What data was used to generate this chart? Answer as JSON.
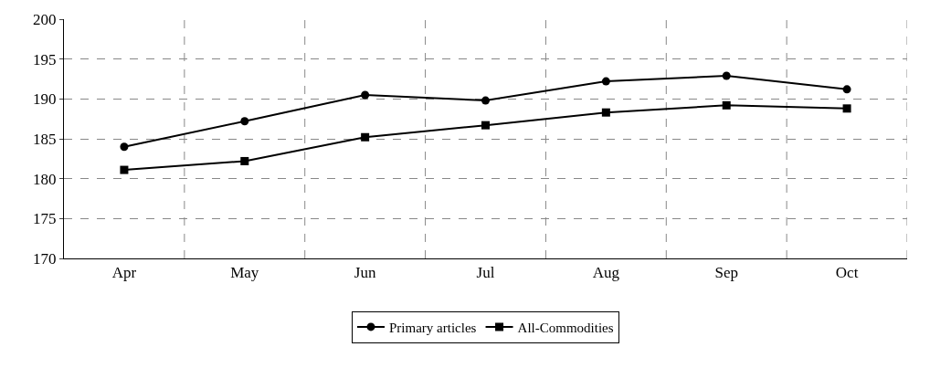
{
  "chart_data": {
    "type": "line",
    "categories": [
      "Apr",
      "May",
      "Jun",
      "Jul",
      "Aug",
      "Sep",
      "Oct"
    ],
    "series": [
      {
        "name": "Primary articles",
        "color": "#000000",
        "marker": "circle",
        "values": [
          184.0,
          187.2,
          190.5,
          189.8,
          192.2,
          192.9,
          191.2
        ]
      },
      {
        "name": "All-Commodities",
        "color": "#000000",
        "marker": "square",
        "values": [
          181.1,
          182.2,
          185.2,
          186.7,
          188.3,
          189.2,
          188.8
        ]
      }
    ],
    "ylim": [
      170,
      200
    ],
    "yticks": [
      170,
      175,
      180,
      185,
      190,
      195,
      200
    ],
    "grid": true,
    "legend": "bottom",
    "line_style": "solid"
  }
}
